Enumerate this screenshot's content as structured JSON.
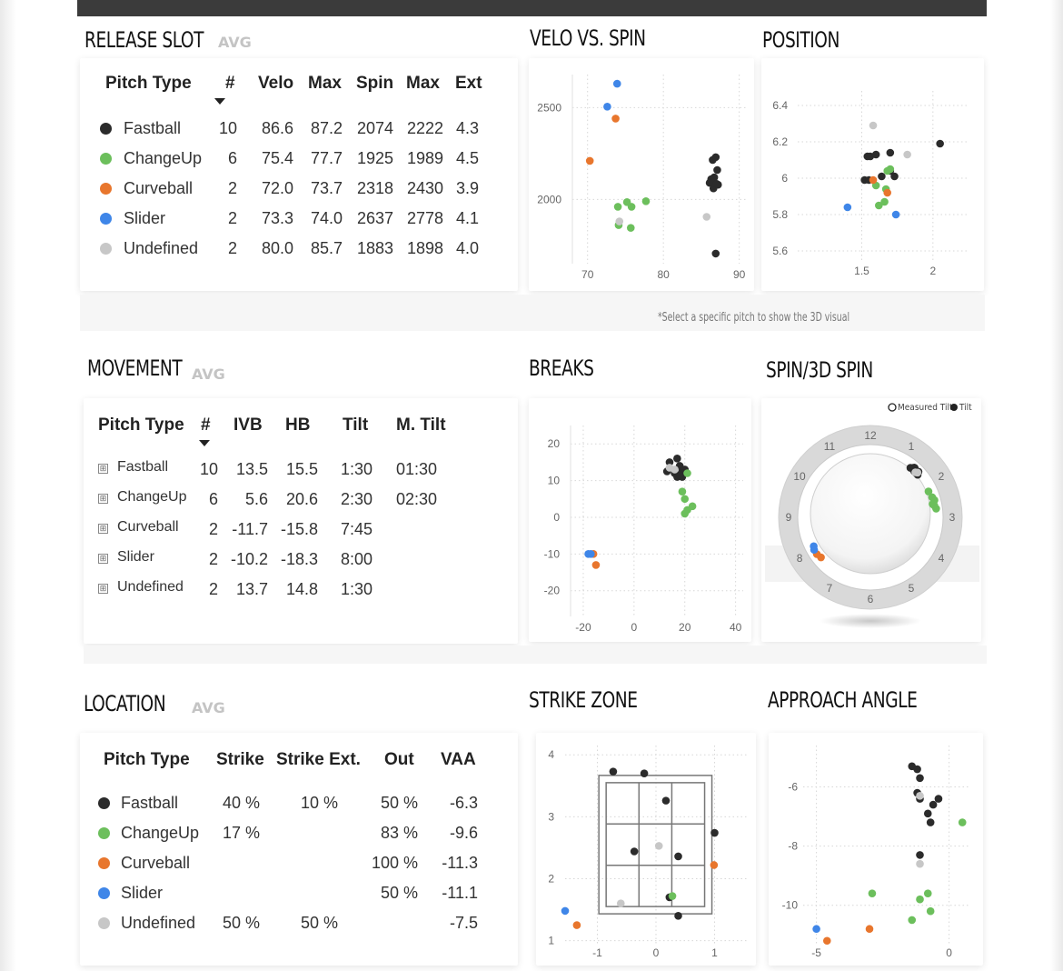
{
  "colors": {
    "Fastball": "#2b2b2b",
    "ChangeUp": "#6cbf5c",
    "Curveball": "#e8762d",
    "Slider": "#3f86e8",
    "Undefined": "#c7c7c7"
  },
  "sections": {
    "release_slot": "RELEASE SLOT",
    "avg1": "AVG",
    "velo_vs_spin": "VELO VS. SPIN",
    "position": "POSITION",
    "movement": "MOVEMENT",
    "avg2": "AVG",
    "breaks": "BREAKS",
    "spin3d": "SPIN/3D SPIN",
    "location": "LOCATION",
    "avg3": "AVG",
    "strike_zone": "STRIKE ZONE",
    "approach_angle": "APPROACH ANGLE"
  },
  "note": "*Select a specific pitch to show the 3D visual",
  "release_table": {
    "headers": [
      "Pitch Type",
      "#",
      "Velo",
      "Max",
      "Spin",
      "Max",
      "Ext"
    ],
    "rows": [
      {
        "type": "Fastball",
        "n": "10",
        "velo": "86.6",
        "vmax": "87.2",
        "spin": "2074",
        "smax": "2222",
        "ext": "4.3"
      },
      {
        "type": "ChangeUp",
        "n": "6",
        "velo": "75.4",
        "vmax": "77.7",
        "spin": "1925",
        "smax": "1989",
        "ext": "4.5"
      },
      {
        "type": "Curveball",
        "n": "2",
        "velo": "72.0",
        "vmax": "73.7",
        "spin": "2318",
        "smax": "2430",
        "ext": "3.9"
      },
      {
        "type": "Slider",
        "n": "2",
        "velo": "73.3",
        "vmax": "74.0",
        "spin": "2637",
        "smax": "2778",
        "ext": "4.1"
      },
      {
        "type": "Undefined",
        "n": "2",
        "velo": "80.0",
        "vmax": "85.7",
        "spin": "1883",
        "smax": "1898",
        "ext": "4.0"
      }
    ]
  },
  "movement_table": {
    "headers": [
      "Pitch Type",
      "#",
      "IVB",
      "HB",
      "Tilt",
      "M. Tilt"
    ],
    "expand_glyph": "⊞",
    "rows": [
      {
        "type": "Fastball",
        "n": "10",
        "ivb": "13.5",
        "hb": "15.5",
        "tilt": "1:30",
        "mtilt": "01:30"
      },
      {
        "type": "ChangeUp",
        "n": "6",
        "ivb": "5.6",
        "hb": "20.6",
        "tilt": "2:30",
        "mtilt": "02:30"
      },
      {
        "type": "Curveball",
        "n": "2",
        "ivb": "-11.7",
        "hb": "-15.8",
        "tilt": "7:45",
        "mtilt": ""
      },
      {
        "type": "Slider",
        "n": "2",
        "ivb": "-10.2",
        "hb": "-18.3",
        "tilt": "8:00",
        "mtilt": ""
      },
      {
        "type": "Undefined",
        "n": "2",
        "ivb": "13.7",
        "hb": "14.8",
        "tilt": "1:30",
        "mtilt": ""
      }
    ]
  },
  "location_table": {
    "headers": [
      "Pitch Type",
      "Strike",
      "Strike Ext.",
      "Out",
      "VAA"
    ],
    "rows": [
      {
        "type": "Fastball",
        "strike": "40 %",
        "strike_ext": "10 %",
        "out": "50 %",
        "vaa": "-6.3"
      },
      {
        "type": "ChangeUp",
        "strike": "17 %",
        "strike_ext": "",
        "out": "83 %",
        "vaa": "-9.6"
      },
      {
        "type": "Curveball",
        "strike": "",
        "strike_ext": "",
        "out": "100 %",
        "vaa": "-11.3"
      },
      {
        "type": "Slider",
        "strike": "",
        "strike_ext": "",
        "out": "50 %",
        "vaa": "-11.1"
      },
      {
        "type": "Undefined",
        "strike": "50 %",
        "strike_ext": "50 %",
        "out": "",
        "vaa": "-7.5"
      }
    ]
  },
  "dial": {
    "legend_measured": "Measured Tilt",
    "legend_tilt": "Tilt",
    "numbers": [
      "12",
      "1",
      "2",
      "3",
      "4",
      "5",
      "6",
      "7",
      "8",
      "9",
      "10",
      "11"
    ]
  },
  "chart_data": [
    {
      "type": "scatter",
      "id": "velo_spin",
      "xlim": [
        68,
        91
      ],
      "ylim": [
        1650,
        2680
      ],
      "xticks": [
        70,
        80,
        90
      ],
      "yticks": [
        2000,
        2500
      ],
      "series": [
        {
          "pitch": "Slider",
          "points": [
            [
              73.9,
              2630
            ],
            [
              72.6,
              2505
            ]
          ]
        },
        {
          "pitch": "Curveball",
          "points": [
            [
              73.7,
              2440
            ],
            [
              70.3,
              2210
            ]
          ]
        },
        {
          "pitch": "ChangeUp",
          "points": [
            [
              74.0,
              1960
            ],
            [
              75.2,
              1985
            ],
            [
              75.8,
              1960
            ],
            [
              77.7,
              1990
            ],
            [
              74.1,
              1860
            ],
            [
              75.7,
              1845
            ]
          ]
        },
        {
          "pitch": "Undefined",
          "points": [
            [
              74.2,
              1880
            ],
            [
              85.7,
              1905
            ]
          ]
        },
        {
          "pitch": "Fastball",
          "points": [
            [
              86.5,
              2215
            ],
            [
              86.9,
              2230
            ],
            [
              87.1,
              2160
            ],
            [
              86.3,
              2110
            ],
            [
              86.7,
              2120
            ],
            [
              87.2,
              2080
            ],
            [
              86.1,
              2090
            ],
            [
              86.6,
              2060
            ],
            [
              87.0,
              2085
            ],
            [
              86.9,
              1705
            ]
          ]
        }
      ]
    },
    {
      "type": "scatter",
      "id": "position",
      "xlim": [
        1.05,
        2.25
      ],
      "ylim": [
        5.55,
        6.48
      ],
      "xticks": [
        1.5,
        2.0
      ],
      "yticks": [
        5.6,
        5.8,
        6.0,
        6.2,
        6.4
      ],
      "series": [
        {
          "pitch": "Undefined",
          "points": [
            [
              1.58,
              6.29
            ],
            [
              1.82,
              6.13
            ]
          ]
        },
        {
          "pitch": "Fastball",
          "points": [
            [
              2.05,
              6.19
            ],
            [
              1.54,
              6.12
            ],
            [
              1.56,
              6.12
            ],
            [
              1.6,
              6.13
            ],
            [
              1.7,
              6.14
            ],
            [
              1.64,
              6.01
            ],
            [
              1.7,
              6.04
            ],
            [
              1.73,
              6.01
            ],
            [
              1.52,
              5.99
            ],
            [
              1.55,
              5.99
            ]
          ]
        },
        {
          "pitch": "ChangeUp",
          "points": [
            [
              1.68,
              6.04
            ],
            [
              1.7,
              6.05
            ],
            [
              1.6,
              5.96
            ],
            [
              1.67,
              5.94
            ],
            [
              1.62,
              5.85
            ],
            [
              1.66,
              5.87
            ]
          ]
        },
        {
          "pitch": "Curveball",
          "points": [
            [
              1.58,
              5.99
            ],
            [
              1.68,
              5.92
            ]
          ]
        },
        {
          "pitch": "Slider",
          "points": [
            [
              1.4,
              5.84
            ],
            [
              1.74,
              5.8
            ]
          ]
        }
      ]
    },
    {
      "type": "scatter",
      "id": "breaks",
      "xlim": [
        -25,
        43
      ],
      "ylim": [
        -27,
        25
      ],
      "xticks": [
        -20,
        0,
        20,
        40
      ],
      "yticks": [
        -20,
        -10,
        0,
        10,
        20
      ],
      "series": [
        {
          "pitch": "Fastball",
          "points": [
            [
              17,
              16
            ],
            [
              14,
              15
            ],
            [
              18,
              14
            ],
            [
              19,
              12.5
            ],
            [
              20,
              13
            ],
            [
              17,
              11
            ],
            [
              13,
              12.5
            ],
            [
              16,
              12
            ],
            [
              19,
              11
            ],
            [
              18,
              11.5
            ]
          ]
        },
        {
          "pitch": "Undefined",
          "points": [
            [
              16,
              13
            ],
            [
              14,
              13.5
            ]
          ]
        },
        {
          "pitch": "ChangeUp",
          "points": [
            [
              21,
              12
            ],
            [
              19,
              7
            ],
            [
              20,
              5
            ],
            [
              23,
              3
            ],
            [
              21,
              2
            ],
            [
              20,
              1
            ]
          ]
        },
        {
          "pitch": "Curveball",
          "points": [
            [
              -16,
              -10
            ],
            [
              -15,
              -13
            ]
          ]
        },
        {
          "pitch": "Slider",
          "points": [
            [
              -18,
              -10
            ],
            [
              -17,
              -10
            ]
          ]
        }
      ]
    },
    {
      "type": "scatter",
      "id": "strike_zone",
      "xlim": [
        -1.55,
        1.55
      ],
      "ylim": [
        0.95,
        4.15
      ],
      "xticks": [
        -1,
        0,
        1
      ],
      "yticks": [
        1,
        2,
        3,
        4
      ],
      "zone": {
        "x": [
          -0.85,
          0.83
        ],
        "y": [
          1.55,
          3.55
        ]
      },
      "series": [
        {
          "pitch": "Fastball",
          "points": [
            [
              -0.73,
              3.73
            ],
            [
              -0.2,
              3.7
            ],
            [
              0.17,
              3.26
            ],
            [
              1.0,
              2.74
            ],
            [
              -0.37,
              2.44
            ],
            [
              0.38,
              2.36
            ],
            [
              0.23,
              1.7
            ],
            [
              0.38,
              1.4
            ]
          ]
        },
        {
          "pitch": "Undefined",
          "points": [
            [
              0.05,
              2.53
            ],
            [
              -0.6,
              1.6
            ]
          ]
        },
        {
          "pitch": "Curveball",
          "points": [
            [
              0.99,
              2.22
            ],
            [
              -1.35,
              1.25
            ]
          ]
        },
        {
          "pitch": "ChangeUp",
          "points": [
            [
              0.28,
              1.72
            ]
          ]
        },
        {
          "pitch": "Slider",
          "points": [
            [
              -1.55,
              1.48
            ]
          ]
        }
      ]
    },
    {
      "type": "scatter",
      "id": "approach_angle",
      "xlim": [
        -5.5,
        0.8
      ],
      "ylim": [
        -11.3,
        -4.6
      ],
      "xticks": [
        -5,
        0
      ],
      "yticks": [
        -10,
        -8,
        -6
      ],
      "series": [
        {
          "pitch": "Fastball",
          "points": [
            [
              -1.4,
              -5.3
            ],
            [
              -1.2,
              -5.4
            ],
            [
              -1.1,
              -5.7
            ],
            [
              -1.2,
              -6.2
            ],
            [
              -1.1,
              -6.4
            ],
            [
              -0.4,
              -6.4
            ],
            [
              -0.6,
              -6.6
            ],
            [
              -0.8,
              -6.9
            ],
            [
              -0.7,
              -7.2
            ],
            [
              -1.1,
              -8.3
            ]
          ]
        },
        {
          "pitch": "Undefined",
          "points": [
            [
              -1.1,
              -6.3
            ],
            [
              -1.1,
              -8.6
            ]
          ]
        },
        {
          "pitch": "ChangeUp",
          "points": [
            [
              0.5,
              -7.2
            ],
            [
              -2.9,
              -9.6
            ],
            [
              -1.1,
              -9.8
            ],
            [
              -0.8,
              -9.6
            ],
            [
              -0.7,
              -10.2
            ],
            [
              -1.4,
              -10.5
            ]
          ]
        },
        {
          "pitch": "Curveball",
          "points": [
            [
              -3.0,
              -10.8
            ],
            [
              -4.6,
              -11.2
            ]
          ]
        },
        {
          "pitch": "Slider",
          "points": [
            [
              -5.0,
              -10.8
            ]
          ]
        }
      ]
    },
    {
      "type": "polar",
      "id": "spin_dial",
      "unit": "clock-hours",
      "series": [
        {
          "pitch": "Fastball",
          "hours": [
            1.3,
            1.35,
            1.4,
            1.45,
            1.5,
            1.55,
            1.6,
            1.45,
            1.38,
            1.52
          ]
        },
        {
          "pitch": "Undefined",
          "hours": [
            1.5,
            1.55
          ]
        },
        {
          "pitch": "ChangeUp",
          "hours": [
            2.2,
            2.4,
            2.5,
            2.6,
            2.65,
            2.75
          ]
        },
        {
          "pitch": "Curveball",
          "hours": [
            7.7,
            7.85
          ]
        },
        {
          "pitch": "Slider",
          "hours": [
            8.1,
            8.0
          ]
        }
      ]
    }
  ]
}
